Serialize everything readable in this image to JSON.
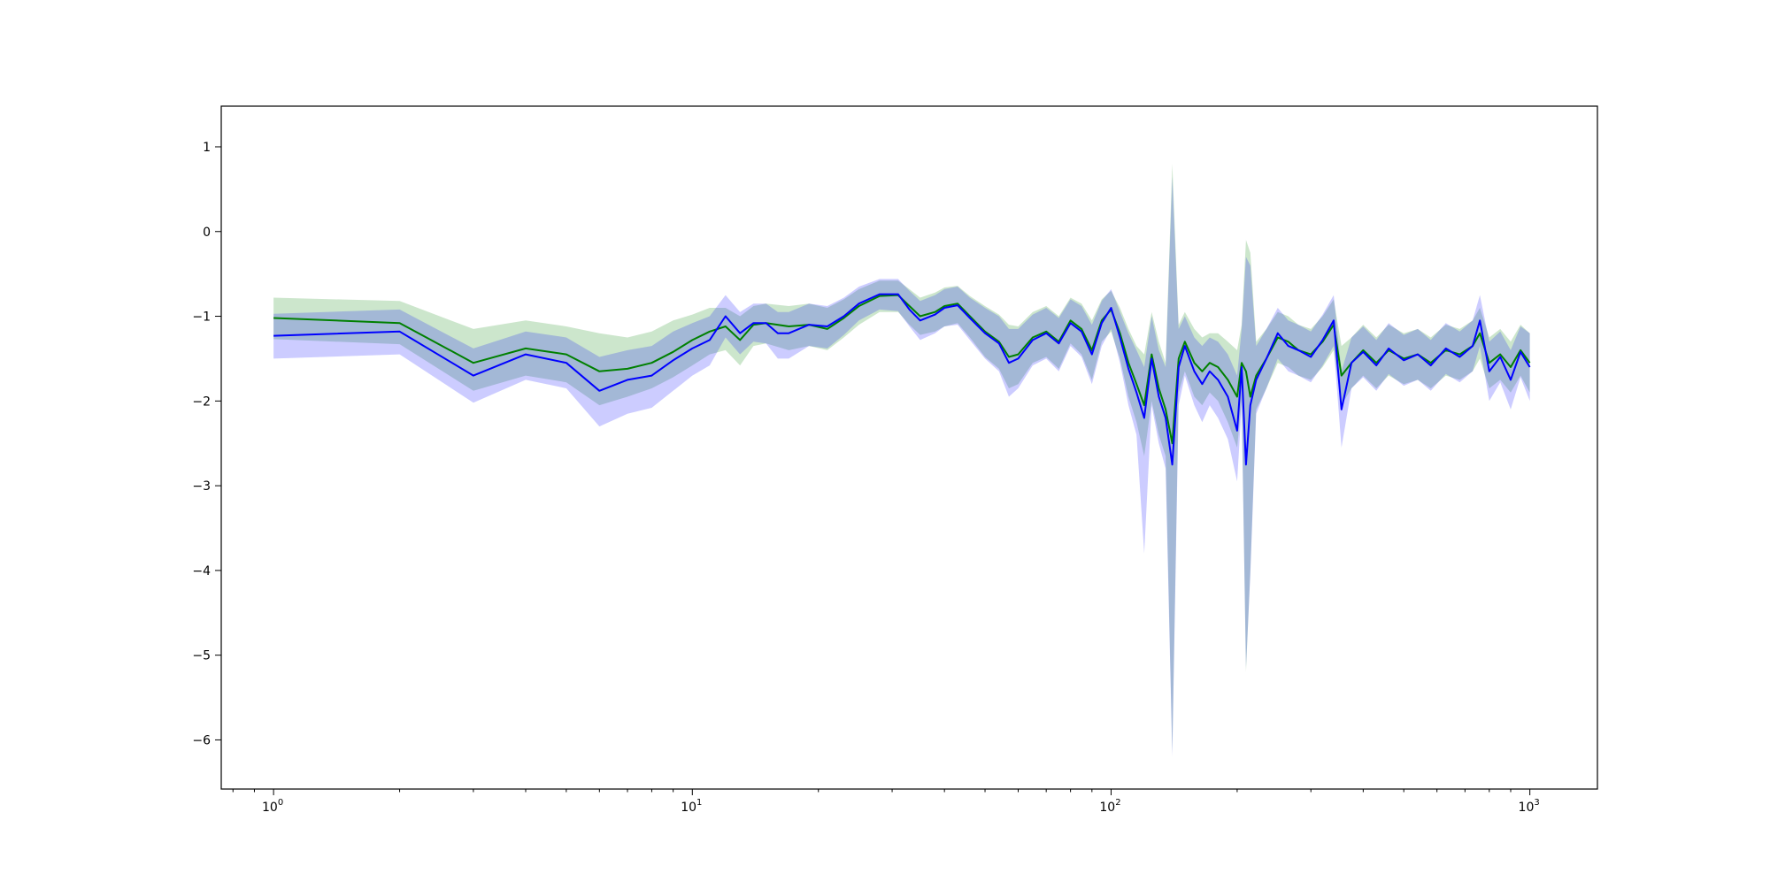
{
  "chart_data": {
    "type": "line",
    "title": "",
    "xlabel": "",
    "ylabel": "",
    "xscale": "log",
    "xlim": [
      0.75,
      1450
    ],
    "ylim": [
      -6.58,
      1.48
    ],
    "x_ticks": [
      {
        "value": 1,
        "base": "10",
        "exp": "0"
      },
      {
        "value": 10,
        "base": "10",
        "exp": "1"
      },
      {
        "value": 100,
        "base": "10",
        "exp": "2"
      },
      {
        "value": 1000,
        "base": "10",
        "exp": "3"
      }
    ],
    "y_ticks": [
      {
        "value": 1,
        "label": "1"
      },
      {
        "value": 0,
        "label": "0"
      },
      {
        "value": -1,
        "label": "−1"
      },
      {
        "value": -2,
        "label": "−2"
      },
      {
        "value": -3,
        "label": "−3"
      },
      {
        "value": -4,
        "label": "−4"
      },
      {
        "value": -5,
        "label": "−5"
      },
      {
        "value": -6,
        "label": "−6"
      }
    ],
    "grid": false,
    "legend": "none",
    "series": [
      {
        "color": "#008000",
        "band_color": "#008000",
        "band_opacity": 0.2,
        "points": [
          [
            1,
            -1.02,
            -0.78,
            -1.27
          ],
          [
            2,
            -1.08,
            -0.82,
            -1.33
          ],
          [
            3,
            -1.55,
            -1.15,
            -1.88
          ],
          [
            4,
            -1.38,
            -1.05,
            -1.7
          ],
          [
            5,
            -1.45,
            -1.12,
            -1.78
          ],
          [
            6,
            -1.65,
            -1.2,
            -2.05
          ],
          [
            7,
            -1.62,
            -1.25,
            -1.95
          ],
          [
            8,
            -1.55,
            -1.18,
            -1.85
          ],
          [
            9,
            -1.42,
            -1.05,
            -1.72
          ],
          [
            10,
            -1.28,
            -0.98,
            -1.58
          ],
          [
            11,
            -1.18,
            -0.9,
            -1.45
          ],
          [
            12,
            -1.12,
            -0.9,
            -1.4
          ],
          [
            13,
            -1.28,
            -1.0,
            -1.58
          ],
          [
            14,
            -1.1,
            -0.88,
            -1.35
          ],
          [
            15,
            -1.08,
            -0.85,
            -1.32
          ],
          [
            17,
            -1.12,
            -0.88,
            -1.4
          ],
          [
            19,
            -1.1,
            -0.85,
            -1.35
          ],
          [
            21,
            -1.15,
            -0.9,
            -1.4
          ],
          [
            23,
            -1.02,
            -0.8,
            -1.25
          ],
          [
            25,
            -0.88,
            -0.68,
            -1.1
          ],
          [
            28,
            -0.76,
            -0.58,
            -0.95
          ],
          [
            31,
            -0.75,
            -0.58,
            -0.95
          ],
          [
            33,
            -0.88,
            -0.68,
            -1.1
          ],
          [
            35,
            -1.0,
            -0.78,
            -1.22
          ],
          [
            38,
            -0.95,
            -0.72,
            -1.18
          ],
          [
            40,
            -0.88,
            -0.66,
            -1.12
          ],
          [
            43,
            -0.85,
            -0.64,
            -1.08
          ],
          [
            46,
            -1.0,
            -0.76,
            -1.25
          ],
          [
            50,
            -1.18,
            -0.88,
            -1.48
          ],
          [
            54,
            -1.3,
            -0.98,
            -1.62
          ],
          [
            57,
            -1.48,
            -1.1,
            -1.85
          ],
          [
            60,
            -1.45,
            -1.12,
            -1.8
          ],
          [
            65,
            -1.25,
            -0.95,
            -1.55
          ],
          [
            70,
            -1.18,
            -0.88,
            -1.48
          ],
          [
            75,
            -1.3,
            -1.0,
            -1.62
          ],
          [
            80,
            -1.05,
            -0.78,
            -1.32
          ],
          [
            85,
            -1.15,
            -0.85,
            -1.45
          ],
          [
            90,
            -1.4,
            -1.05,
            -1.75
          ],
          [
            95,
            -1.05,
            -0.8,
            -1.3
          ],
          [
            100,
            -0.92,
            -0.7,
            -1.18
          ],
          [
            105,
            -1.2,
            -0.9,
            -1.5
          ],
          [
            110,
            -1.55,
            -1.15,
            -1.95
          ],
          [
            115,
            -1.8,
            -1.35,
            -2.25
          ],
          [
            120,
            -2.05,
            -1.45,
            -2.65
          ],
          [
            125,
            -1.45,
            -0.95,
            -2.0
          ],
          [
            130,
            -1.85,
            -1.3,
            -2.4
          ],
          [
            135,
            -2.1,
            -1.55,
            -2.65
          ],
          [
            140,
            -2.5,
            0.8,
            -6.15
          ],
          [
            145,
            -1.5,
            -1.1,
            -1.9
          ],
          [
            150,
            -1.3,
            -0.95,
            -1.65
          ],
          [
            158,
            -1.55,
            -1.15,
            -1.95
          ],
          [
            165,
            -1.65,
            -1.25,
            -2.05
          ],
          [
            172,
            -1.55,
            -1.2,
            -1.9
          ],
          [
            180,
            -1.6,
            -1.2,
            -2.0
          ],
          [
            190,
            -1.75,
            -1.3,
            -2.25
          ],
          [
            200,
            -1.95,
            -1.4,
            -2.55
          ],
          [
            205,
            -1.55,
            -1.1,
            -2.0
          ],
          [
            210,
            -1.65,
            -0.1,
            -5.2
          ],
          [
            215,
            -1.95,
            -0.25,
            -4.0
          ],
          [
            222,
            -1.7,
            -1.3,
            -2.1
          ],
          [
            235,
            -1.5,
            -1.15,
            -1.85
          ],
          [
            250,
            -1.25,
            -0.95,
            -1.55
          ],
          [
            265,
            -1.3,
            -1.0,
            -1.6
          ],
          [
            280,
            -1.4,
            -1.1,
            -1.7
          ],
          [
            300,
            -1.45,
            -1.15,
            -1.75
          ],
          [
            320,
            -1.3,
            -1.0,
            -1.6
          ],
          [
            340,
            -1.1,
            -0.8,
            -1.4
          ],
          [
            355,
            -1.7,
            -1.35,
            -2.05
          ],
          [
            375,
            -1.55,
            -1.25,
            -1.85
          ],
          [
            400,
            -1.4,
            -1.1,
            -1.7
          ],
          [
            430,
            -1.55,
            -1.25,
            -1.85
          ],
          [
            460,
            -1.4,
            -1.1,
            -1.7
          ],
          [
            500,
            -1.5,
            -1.2,
            -1.8
          ],
          [
            540,
            -1.45,
            -1.15,
            -1.75
          ],
          [
            580,
            -1.55,
            -1.25,
            -1.85
          ],
          [
            630,
            -1.4,
            -1.1,
            -1.7
          ],
          [
            680,
            -1.45,
            -1.15,
            -1.75
          ],
          [
            730,
            -1.35,
            -1.05,
            -1.65
          ],
          [
            760,
            -1.2,
            -0.9,
            -1.5
          ],
          [
            800,
            -1.55,
            -1.25,
            -1.85
          ],
          [
            850,
            -1.45,
            -1.15,
            -1.75
          ],
          [
            900,
            -1.6,
            -1.3,
            -1.9
          ],
          [
            950,
            -1.4,
            -1.1,
            -1.7
          ],
          [
            1000,
            -1.55,
            -1.2,
            -1.9
          ]
        ]
      },
      {
        "color": "#0000ff",
        "band_color": "#0000ff",
        "band_opacity": 0.2,
        "points": [
          [
            1,
            -1.23,
            -0.97,
            -1.5
          ],
          [
            2,
            -1.18,
            -0.92,
            -1.45
          ],
          [
            3,
            -1.7,
            -1.38,
            -2.02
          ],
          [
            4,
            -1.45,
            -1.18,
            -1.75
          ],
          [
            5,
            -1.55,
            -1.25,
            -1.85
          ],
          [
            6,
            -1.88,
            -1.48,
            -2.3
          ],
          [
            7,
            -1.75,
            -1.4,
            -2.15
          ],
          [
            8,
            -1.7,
            -1.35,
            -2.08
          ],
          [
            9,
            -1.52,
            -1.18,
            -1.88
          ],
          [
            10,
            -1.38,
            -1.08,
            -1.7
          ],
          [
            11,
            -1.28,
            -1.0,
            -1.58
          ],
          [
            12,
            -1.0,
            -0.75,
            -1.25
          ],
          [
            13,
            -1.2,
            -0.95,
            -1.45
          ],
          [
            14,
            -1.08,
            -0.85,
            -1.3
          ],
          [
            15,
            -1.08,
            -0.85,
            -1.32
          ],
          [
            16,
            -1.2,
            -0.95,
            -1.5
          ],
          [
            17,
            -1.2,
            -0.95,
            -1.5
          ],
          [
            19,
            -1.1,
            -0.85,
            -1.35
          ],
          [
            21,
            -1.12,
            -0.88,
            -1.38
          ],
          [
            23,
            -1.0,
            -0.78,
            -1.22
          ],
          [
            25,
            -0.85,
            -0.65,
            -1.05
          ],
          [
            28,
            -0.74,
            -0.56,
            -0.92
          ],
          [
            31,
            -0.74,
            -0.56,
            -0.94
          ],
          [
            33,
            -0.92,
            -0.7,
            -1.12
          ],
          [
            35,
            -1.05,
            -0.82,
            -1.28
          ],
          [
            38,
            -0.98,
            -0.75,
            -1.2
          ],
          [
            40,
            -0.9,
            -0.68,
            -1.12
          ],
          [
            43,
            -0.87,
            -0.65,
            -1.1
          ],
          [
            46,
            -1.02,
            -0.78,
            -1.28
          ],
          [
            50,
            -1.2,
            -0.9,
            -1.5
          ],
          [
            54,
            -1.32,
            -1.0,
            -1.65
          ],
          [
            57,
            -1.55,
            -1.15,
            -1.95
          ],
          [
            60,
            -1.5,
            -1.15,
            -1.85
          ],
          [
            65,
            -1.28,
            -0.98,
            -1.58
          ],
          [
            70,
            -1.2,
            -0.9,
            -1.5
          ],
          [
            75,
            -1.32,
            -1.02,
            -1.65
          ],
          [
            80,
            -1.08,
            -0.8,
            -1.35
          ],
          [
            85,
            -1.18,
            -0.88,
            -1.48
          ],
          [
            90,
            -1.45,
            -1.1,
            -1.8
          ],
          [
            95,
            -1.08,
            -0.82,
            -1.35
          ],
          [
            100,
            -0.9,
            -0.68,
            -1.15
          ],
          [
            105,
            -1.25,
            -0.95,
            -1.55
          ],
          [
            110,
            -1.62,
            -1.2,
            -2.05
          ],
          [
            115,
            -1.9,
            -1.4,
            -2.4
          ],
          [
            120,
            -2.2,
            -1.6,
            -3.8
          ],
          [
            125,
            -1.5,
            -1.0,
            -2.05
          ],
          [
            130,
            -1.95,
            -1.4,
            -2.5
          ],
          [
            135,
            -2.2,
            -1.6,
            -2.8
          ],
          [
            140,
            -2.75,
            0.65,
            -6.2
          ],
          [
            145,
            -1.6,
            -1.15,
            -2.05
          ],
          [
            150,
            -1.35,
            -1.0,
            -1.7
          ],
          [
            158,
            -1.65,
            -1.25,
            -2.05
          ],
          [
            165,
            -1.8,
            -1.35,
            -2.25
          ],
          [
            172,
            -1.65,
            -1.25,
            -2.05
          ],
          [
            180,
            -1.75,
            -1.3,
            -2.2
          ],
          [
            190,
            -1.95,
            -1.45,
            -2.45
          ],
          [
            200,
            -2.35,
            -1.7,
            -2.95
          ],
          [
            205,
            -1.6,
            -1.15,
            -2.05
          ],
          [
            210,
            -2.75,
            -0.3,
            -5.15
          ],
          [
            215,
            -2.05,
            -0.4,
            -4.05
          ],
          [
            222,
            -1.75,
            -1.35,
            -2.15
          ],
          [
            235,
            -1.5,
            -1.15,
            -1.85
          ],
          [
            250,
            -1.2,
            -0.9,
            -1.5
          ],
          [
            265,
            -1.35,
            -1.05,
            -1.65
          ],
          [
            280,
            -1.4,
            -1.1,
            -1.7
          ],
          [
            300,
            -1.48,
            -1.18,
            -1.78
          ],
          [
            320,
            -1.28,
            -0.98,
            -1.58
          ],
          [
            340,
            -1.05,
            -0.75,
            -1.35
          ],
          [
            355,
            -2.1,
            -1.65,
            -2.55
          ],
          [
            375,
            -1.55,
            -1.25,
            -1.85
          ],
          [
            400,
            -1.42,
            -1.12,
            -1.72
          ],
          [
            430,
            -1.58,
            -1.28,
            -1.88
          ],
          [
            460,
            -1.38,
            -1.08,
            -1.68
          ],
          [
            500,
            -1.52,
            -1.22,
            -1.82
          ],
          [
            540,
            -1.45,
            -1.15,
            -1.75
          ],
          [
            580,
            -1.58,
            -1.28,
            -1.88
          ],
          [
            630,
            -1.38,
            -1.08,
            -1.68
          ],
          [
            680,
            -1.48,
            -1.18,
            -1.78
          ],
          [
            730,
            -1.35,
            -1.05,
            -1.65
          ],
          [
            760,
            -1.05,
            -0.75,
            -1.35
          ],
          [
            800,
            -1.65,
            -1.3,
            -2.0
          ],
          [
            850,
            -1.48,
            -1.18,
            -1.78
          ],
          [
            900,
            -1.75,
            -1.4,
            -2.1
          ],
          [
            950,
            -1.42,
            -1.12,
            -1.72
          ],
          [
            1000,
            -1.6,
            -1.2,
            -2.0
          ]
        ]
      }
    ]
  }
}
